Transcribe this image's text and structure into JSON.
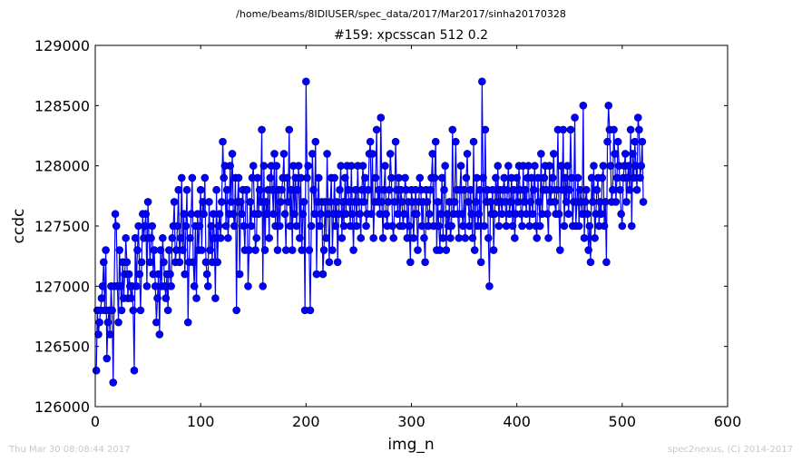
{
  "header": {
    "path": "/home/beams/8IDIUSER/spec_data/2017/Mar2017/sinha20170328"
  },
  "footer": {
    "timestamp": "Thu Mar 30 08:08:44 2017",
    "credit": "spec2nexus, (C) 2014-2017"
  },
  "chart_data": {
    "type": "line",
    "title": "#159: xpcsscan 512 0.2",
    "xlabel": "img_n",
    "ylabel": "ccdc",
    "xlim": [
      0,
      600
    ],
    "ylim": [
      126000,
      129000
    ],
    "x_ticks": [
      "0",
      "100",
      "200",
      "300",
      "400",
      "500",
      "600"
    ],
    "y_ticks": [
      "126000",
      "126500",
      "127000",
      "127500",
      "128000",
      "128500",
      "129000"
    ],
    "grid": false,
    "legend": "none",
    "marker": "circle",
    "color": "#0000ff",
    "x_start": 1,
    "x_step": 1,
    "values": [
      126300,
      126800,
      126600,
      126700,
      126800,
      126900,
      127000,
      127200,
      126800,
      127300,
      126400,
      126700,
      126800,
      126600,
      127000,
      126800,
      126200,
      127000,
      127600,
      127500,
      127000,
      126700,
      127300,
      127000,
      126800,
      127200,
      126900,
      127100,
      127400,
      127200,
      126900,
      127100,
      127000,
      126900,
      127000,
      126800,
      126300,
      127400,
      127000,
      127300,
      127500,
      127100,
      126800,
      127200,
      127600,
      127400,
      127500,
      127600,
      127000,
      127700,
      127400,
      127200,
      127400,
      127500,
      127100,
      127300,
      127000,
      126700,
      126900,
      127100,
      126600,
      127300,
      127000,
      127400,
      127200,
      127000,
      126900,
      127100,
      126800,
      127300,
      127100,
      127000,
      127400,
      127500,
      127700,
      127200,
      127300,
      127500,
      127800,
      127200,
      127400,
      127900,
      127300,
      127600,
      127100,
      127500,
      127800,
      126700,
      127200,
      127400,
      127600,
      127900,
      127200,
      127000,
      127500,
      126900,
      127600,
      127300,
      127500,
      127800,
      127300,
      127700,
      127600,
      127900,
      127200,
      127100,
      127000,
      127700,
      127300,
      127500,
      127200,
      127600,
      127400,
      126900,
      127800,
      127200,
      127500,
      127600,
      127400,
      127700,
      128200,
      127900,
      128000,
      127500,
      127800,
      127400,
      127600,
      128000,
      127700,
      128100,
      127600,
      127500,
      127900,
      126800,
      127700,
      127900,
      127100,
      127700,
      127600,
      127800,
      127500,
      127300,
      127800,
      127800,
      127000,
      127300,
      127700,
      127500,
      127900,
      128000,
      127600,
      127300,
      127400,
      127900,
      127600,
      127800,
      127700,
      128300,
      127000,
      128000,
      127300,
      127700,
      127600,
      127800,
      127400,
      127900,
      128000,
      127800,
      127600,
      128100,
      127500,
      128000,
      127300,
      127800,
      127500,
      127700,
      127800,
      127900,
      128100,
      127600,
      127300,
      127900,
      127700,
      128300,
      127500,
      127800,
      127300,
      128000,
      127600,
      127900,
      127500,
      127800,
      128000,
      127400,
      127900,
      127300,
      127600,
      127700,
      126800,
      128700,
      127900,
      128000,
      127300,
      126800,
      127500,
      128100,
      127800,
      127600,
      128200,
      127100,
      127700,
      127900,
      127500,
      127600,
      127700,
      127100,
      127300,
      127700,
      127400,
      128100,
      127600,
      127200,
      127700,
      127900,
      127300,
      127600,
      127900,
      127500,
      127700,
      127200,
      127600,
      127800,
      128000,
      127400,
      127700,
      127500,
      127900,
      127600,
      128000,
      127800,
      127700,
      127500,
      128000,
      127600,
      127300,
      127700,
      127800,
      127500,
      128000,
      127700,
      127600,
      127400,
      127800,
      128000,
      127700,
      127900,
      127500,
      127600,
      127800,
      128100,
      128200,
      127600,
      128100,
      127400,
      127700,
      127900,
      128300,
      127700,
      127800,
      127600,
      128400,
      127700,
      127400,
      127800,
      128000,
      127600,
      127500,
      127700,
      127800,
      128100,
      127900,
      127500,
      127400,
      127700,
      128200,
      127800,
      127600,
      127900,
      127500,
      127800,
      127700,
      127500,
      127600,
      127900,
      127800,
      127400,
      127700,
      127500,
      127200,
      127800,
      127700,
      127400,
      127600,
      127800,
      127600,
      127300,
      127700,
      127900,
      127800,
      127500,
      127700,
      127400,
      127200,
      127800,
      127700,
      127500,
      127600,
      127800,
      127900,
      128100,
      127500,
      127900,
      128200,
      127300,
      127700,
      127500,
      127300,
      127600,
      127900,
      127400,
      127800,
      128000,
      127300,
      127600,
      127500,
      127700,
      127400,
      127500,
      128300,
      127600,
      127700,
      128200,
      127800,
      127600,
      127400,
      127800,
      128000,
      127600,
      127500,
      127800,
      127400,
      127900,
      128100,
      127700,
      127500,
      127800,
      127600,
      127400,
      128200,
      127300,
      127700,
      127900,
      127500,
      127600,
      127800,
      127200,
      128700,
      127900,
      127500,
      128300,
      127700,
      127800,
      127400,
      127000,
      127700,
      127600,
      127800,
      127300,
      127600,
      127900,
      127700,
      128000,
      127500,
      127800,
      127700,
      127600,
      127800,
      127900,
      127700,
      127500,
      127800,
      128000,
      127600,
      127700,
      127900,
      127500,
      127800,
      127400,
      127600,
      127900,
      127700,
      128000,
      127800,
      127600,
      127500,
      128000,
      127700,
      127800,
      127600,
      127900,
      128000,
      127500,
      127700,
      127900,
      127600,
      127800,
      128000,
      127500,
      127400,
      127900,
      127700,
      127500,
      128100,
      127600,
      127800,
      127900,
      128000,
      127800,
      127600,
      127400,
      128000,
      127700,
      127800,
      127900,
      128100,
      127700,
      127600,
      127800,
      128300,
      127600,
      127300,
      128000,
      127800,
      128300,
      127500,
      127900,
      127700,
      128000,
      127600,
      127800,
      128300,
      127900,
      127500,
      127700,
      128400,
      127500,
      127700,
      127900,
      127500,
      127800,
      127700,
      127600,
      128500,
      127400,
      127700,
      127800,
      127600,
      127300,
      127500,
      127200,
      127900,
      127700,
      128000,
      127400,
      127600,
      127800,
      127900,
      127500,
      127700,
      127600,
      127900,
      128000,
      127500,
      127700,
      127200,
      128200,
      128500,
      128300,
      128000,
      127700,
      127800,
      128300,
      128100,
      127700,
      127900,
      128200,
      128000,
      127800,
      127600,
      127500,
      127900,
      128000,
      128100,
      127700,
      127900,
      128000,
      127800,
      128300,
      127500,
      128100,
      127900,
      128200,
      128000,
      127800,
      128400,
      128300,
      127900,
      128000,
      128200,
      127700
    ]
  }
}
